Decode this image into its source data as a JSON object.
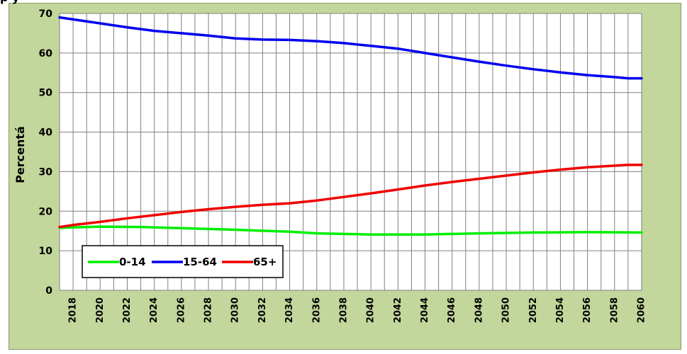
{
  "title_fragment": "p     y",
  "chart_data": {
    "type": "line",
    "title": "",
    "xlabel": "",
    "ylabel": "Percentá",
    "ylim": [
      0,
      70
    ],
    "yticks": [
      0,
      10,
      20,
      30,
      40,
      50,
      60,
      70
    ],
    "xlim": [
      2017,
      2060
    ],
    "xticks": [
      2018,
      2020,
      2022,
      2024,
      2026,
      2028,
      2030,
      2032,
      2034,
      2036,
      2038,
      2040,
      2042,
      2044,
      2046,
      2048,
      2050,
      2052,
      2054,
      2056,
      2058,
      2060
    ],
    "grid": true,
    "legend_position": "bottom-left",
    "series": [
      {
        "name": "0-14",
        "color": "#00ee00",
        "x": [
          2017,
          2020,
          2023,
          2026,
          2030,
          2034,
          2036,
          2040,
          2044,
          2048,
          2052,
          2056,
          2060
        ],
        "values": [
          15.8,
          16.1,
          16.0,
          15.7,
          15.3,
          14.8,
          14.4,
          14.1,
          14.1,
          14.4,
          14.6,
          14.7,
          14.6
        ]
      },
      {
        "name": "15-64",
        "color": "#0000ee",
        "x": [
          2017,
          2018,
          2020,
          2022,
          2024,
          2026,
          2028,
          2030,
          2032,
          2034,
          2036,
          2038,
          2040,
          2042,
          2044,
          2046,
          2048,
          2050,
          2052,
          2054,
          2056,
          2058,
          2059,
          2060
        ],
        "values": [
          69.0,
          68.5,
          67.5,
          66.5,
          65.6,
          65.0,
          64.4,
          63.7,
          63.4,
          63.3,
          63.0,
          62.5,
          61.8,
          61.1,
          60.0,
          58.9,
          57.8,
          56.8,
          55.9,
          55.1,
          54.4,
          53.9,
          53.6,
          53.6
        ]
      },
      {
        "name": "65+",
        "color": "#ee0000",
        "x": [
          2017,
          2018,
          2020,
          2022,
          2024,
          2026,
          2028,
          2030,
          2032,
          2034,
          2036,
          2038,
          2040,
          2042,
          2044,
          2046,
          2048,
          2050,
          2052,
          2054,
          2056,
          2058,
          2059,
          2060
        ],
        "values": [
          16.0,
          16.5,
          17.3,
          18.2,
          19.0,
          19.8,
          20.5,
          21.1,
          21.6,
          22.0,
          22.7,
          23.6,
          24.5,
          25.5,
          26.5,
          27.4,
          28.2,
          29.0,
          29.8,
          30.5,
          31.1,
          31.5,
          31.7,
          31.7
        ]
      }
    ]
  }
}
